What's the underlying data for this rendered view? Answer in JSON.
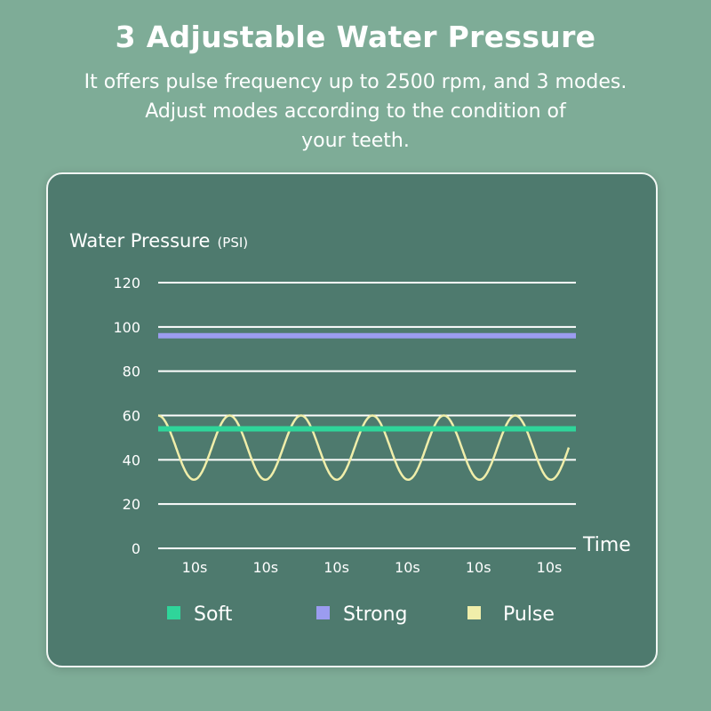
{
  "header": {
    "title": "3 Adjustable Water Pressure",
    "lines": [
      "It offers pulse frequency up to 2500 rpm, and 3 modes.",
      "Adjust modes according to the condition of",
      "your teeth."
    ]
  },
  "chart_data": {
    "type": "line",
    "title": "",
    "ylabel": "Water Pressure",
    "yunit": "(PSI)",
    "xlabel": "Time",
    "ylim": [
      0,
      120
    ],
    "yticks": [
      "0",
      "20",
      "40",
      "60",
      "80",
      "100",
      "120"
    ],
    "ytick_values": [
      0,
      20,
      40,
      60,
      80,
      100,
      120
    ],
    "xticks": [
      "10s",
      "10s",
      "10s",
      "10s",
      "10s",
      "10s"
    ],
    "grid": true,
    "legend_position": "bottom",
    "series": [
      {
        "name": "Soft",
        "kind": "constant",
        "value": 54,
        "color": "#2fd59a"
      },
      {
        "name": "Strong",
        "kind": "constant",
        "value": 96,
        "color": "#9b9cf0"
      },
      {
        "name": "Pulse",
        "kind": "wave",
        "min": 31,
        "max": 60,
        "cycles": 5.75,
        "color": "#f0eeaa"
      }
    ]
  },
  "colors": {
    "background": "#7eac97",
    "panel": "#4e7a6e",
    "grid": "#ffffff"
  }
}
